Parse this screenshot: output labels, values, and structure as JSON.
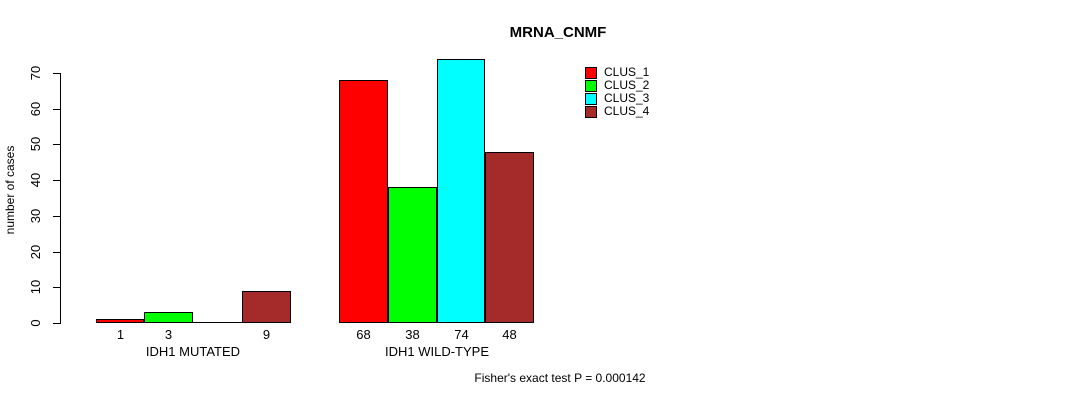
{
  "chart_data": {
    "type": "bar",
    "title": "MRNA_CNMF",
    "ylabel": "number of cases",
    "xlabel": "",
    "categories": [
      "IDH1 MUTATED",
      "IDH1 WILD-TYPE"
    ],
    "series": [
      {
        "name": "CLUS_1",
        "color": "#ff0000",
        "values": [
          1,
          68
        ]
      },
      {
        "name": "CLUS_2",
        "color": "#00ff00",
        "values": [
          3,
          38
        ]
      },
      {
        "name": "CLUS_3",
        "color": "#00ffff",
        "values": [
          0,
          74
        ]
      },
      {
        "name": "CLUS_4",
        "color": "#a52a2a",
        "values": [
          9,
          48
        ]
      }
    ],
    "bar_value_labels": [
      [
        "1",
        "3",
        "",
        "9"
      ],
      [
        "68",
        "38",
        "74",
        "48"
      ]
    ],
    "yticks": [
      0,
      10,
      20,
      30,
      40,
      50,
      60,
      70
    ],
    "ylim": [
      0,
      74
    ],
    "grid": false,
    "legend_position": "top-right",
    "legend_entries": [
      "CLUS_1",
      "CLUS_2",
      "CLUS_3",
      "CLUS_4"
    ],
    "annotation": "Fisher's exact test P = 0.000142"
  }
}
